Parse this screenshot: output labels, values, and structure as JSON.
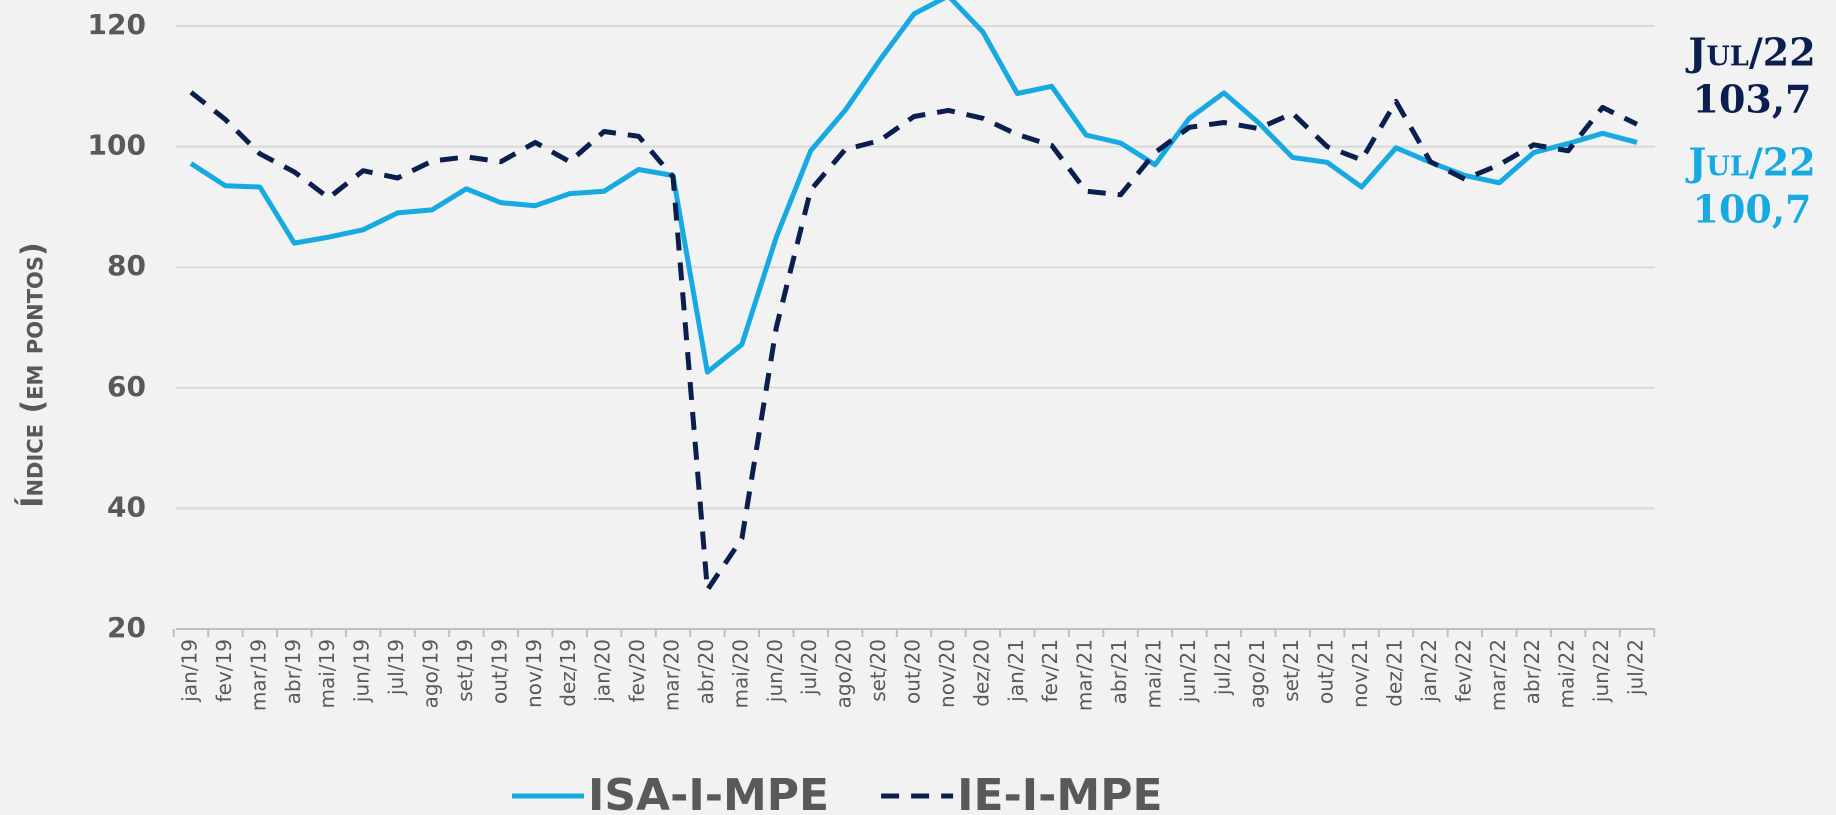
{
  "chart_data": {
    "type": "line",
    "y_axis_label": "Índice (em pontos)",
    "categories": [
      "jan/19",
      "fev/19",
      "mar/19",
      "abr/19",
      "mai/19",
      "jun/19",
      "jul/19",
      "ago/19",
      "set/19",
      "out/19",
      "nov/19",
      "dez/19",
      "jan/20",
      "fev/20",
      "mar/20",
      "abr/20",
      "mai/20",
      "jun/20",
      "jul/20",
      "ago/20",
      "set/20",
      "out/20",
      "nov/20",
      "dez/20",
      "jan/21",
      "fev/21",
      "mar/21",
      "abr/21",
      "mai/21",
      "jun/21",
      "jul/21",
      "ago/21",
      "set/21",
      "out/21",
      "nov/21",
      "dez/21",
      "jan/22",
      "fev/22",
      "mar/22",
      "abr/22",
      "mai/22",
      "jun/22",
      "jul/22"
    ],
    "series": [
      {
        "name": "ISA-I-MPE",
        "color": "#17a9e1",
        "dashed": false,
        "values": [
          97.2,
          93.5,
          93.3,
          84,
          85,
          86.2,
          89,
          89.5,
          93,
          90.7,
          90.2,
          92.2,
          92.6,
          96.2,
          95.2,
          62.6,
          67.2,
          85,
          99.3,
          106,
          114.3,
          122,
          125,
          119,
          108.8,
          110,
          101.9,
          100.6,
          97,
          104.7,
          108.9,
          104,
          98.2,
          97.4,
          93.3,
          99.8,
          97.4,
          95.2,
          94,
          99,
          100.5,
          102.2,
          100.7
        ]
      },
      {
        "name": "IE-I-MPE",
        "color": "#0b1f4f",
        "dashed": true,
        "values": [
          109,
          104.5,
          98.8,
          95.8,
          91.5,
          96,
          94.8,
          97.6,
          98.3,
          97.5,
          100.7,
          97.5,
          102.5,
          101.7,
          95,
          26.5,
          35,
          70,
          92.8,
          99.5,
          101,
          105,
          106,
          104.7,
          102,
          100.2,
          92.6,
          92,
          99,
          103.2,
          104,
          103,
          105.5,
          100,
          97.8,
          107.5,
          97.5,
          94.6,
          97,
          100.3,
          99.3,
          106.5,
          103.7
        ]
      }
    ],
    "annotations": [
      {
        "text": "Jul/22",
        "value": 103.7,
        "label": "103,7",
        "color": "#0b1f4f"
      },
      {
        "text": "Jul/22",
        "value": 100.7,
        "label": "100,7",
        "color": "#17a9e1"
      }
    ],
    "ylim": [
      20,
      120
    ],
    "yticks": [
      20,
      40,
      60,
      80,
      100,
      120
    ],
    "grid": true
  }
}
